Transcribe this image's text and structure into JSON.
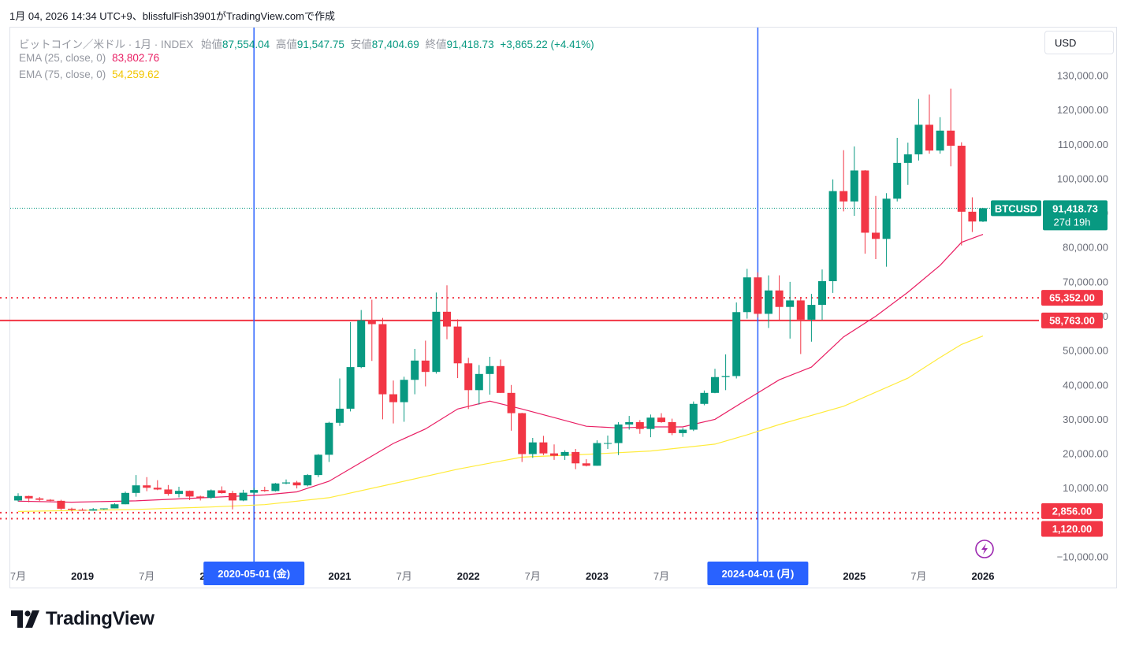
{
  "header": {
    "timestamp": "1月 04, 2026 14:34 UTC+9、blissfulFish3901がTradingView.comで作成"
  },
  "legend": {
    "symbol_line": "ビットコイン／米ドル · 1月 · INDEX",
    "open_label": "始値",
    "open": "87,554.04",
    "high_label": "高値",
    "high": "91,547.75",
    "low_label": "安値",
    "low": "87,404.69",
    "close_label": "終値",
    "close": "91,418.73",
    "change": "+3,865.22 (+4.41%)",
    "ema25_label": "EMA (25, close, 0)",
    "ema25_value": "83,802.76",
    "ema75_label": "EMA (75, close, 0)",
    "ema75_value": "54,259.62"
  },
  "currency_button": "USD",
  "price_tag": {
    "symbol": "BTCUSD",
    "price": "91,418.73",
    "countdown": "27d 19h"
  },
  "brand": "TradingView",
  "colors": {
    "up": "#089981",
    "down": "#f23645",
    "ema25": "#e91e63",
    "ema75": "#ffeb3b",
    "vline": "#2962ff",
    "hline": "#f23645"
  },
  "chart_data": {
    "type": "candlestick",
    "interval": "1M",
    "ylim": [
      -10000,
      130000
    ],
    "yticks": [
      -10000,
      10000,
      20000,
      30000,
      40000,
      50000,
      60000,
      70000,
      80000,
      90000,
      100000,
      110000,
      120000,
      130000
    ],
    "ytick_labels": [
      "−10,000.00",
      "10,000.00",
      "20,000.00",
      "30,000.00",
      "40,000.00",
      "50,000.00",
      "60,000.00",
      "70,000.00",
      "80,000.00",
      "90,000.00",
      "100,000.00",
      "110,000.00",
      "120,000.00",
      "130,000.00"
    ],
    "x_labels": [
      {
        "date": "2018-07",
        "text": "7月"
      },
      {
        "date": "2019-01",
        "text": "2019"
      },
      {
        "date": "2019-07",
        "text": "7月"
      },
      {
        "date": "2020-01",
        "text": "2020"
      },
      {
        "date": "2021-01",
        "text": "2021"
      },
      {
        "date": "2021-07",
        "text": "7月"
      },
      {
        "date": "2022-01",
        "text": "2022"
      },
      {
        "date": "2022-07",
        "text": "7月"
      },
      {
        "date": "2023-01",
        "text": "2023"
      },
      {
        "date": "2023-07",
        "text": "7月"
      },
      {
        "date": "2025-01",
        "text": "2025"
      },
      {
        "date": "2025-07",
        "text": "7月"
      },
      {
        "date": "2026-01",
        "text": "2026"
      }
    ],
    "vertical_markers": [
      {
        "date": "2020-05",
        "label": "2020-05-01 (金)"
      },
      {
        "date": "2024-04",
        "label": "2024-04-01 (月)"
      }
    ],
    "horizontal_lines": [
      {
        "value": 65352,
        "label": "65,352.00",
        "style": "dotted"
      },
      {
        "value": 58763,
        "label": "58,763.00",
        "style": "solid"
      },
      {
        "value": 2856,
        "label": "2,856.00",
        "style": "dotted"
      },
      {
        "value": 1120,
        "label": "1,120.00",
        "style": "dotted"
      }
    ],
    "last_price": 91418.73,
    "candles": [
      {
        "d": "2018-07",
        "o": 6400,
        "h": 8500,
        "l": 6100,
        "c": 7700
      },
      {
        "d": "2018-08",
        "o": 7700,
        "h": 7800,
        "l": 5900,
        "c": 7000
      },
      {
        "d": "2018-09",
        "o": 7000,
        "h": 7400,
        "l": 6200,
        "c": 6600
      },
      {
        "d": "2018-10",
        "o": 6600,
        "h": 6800,
        "l": 6200,
        "c": 6300
      },
      {
        "d": "2018-11",
        "o": 6300,
        "h": 6600,
        "l": 3600,
        "c": 4000
      },
      {
        "d": "2018-12",
        "o": 4000,
        "h": 4300,
        "l": 3200,
        "c": 3700
      },
      {
        "d": "2019-01",
        "o": 3700,
        "h": 4100,
        "l": 3400,
        "c": 3450
      },
      {
        "d": "2019-02",
        "o": 3450,
        "h": 4200,
        "l": 3400,
        "c": 3850
      },
      {
        "d": "2019-03",
        "o": 3850,
        "h": 4100,
        "l": 3700,
        "c": 4100
      },
      {
        "d": "2019-04",
        "o": 4100,
        "h": 5600,
        "l": 4100,
        "c": 5300
      },
      {
        "d": "2019-05",
        "o": 5300,
        "h": 9000,
        "l": 5300,
        "c": 8600
      },
      {
        "d": "2019-06",
        "o": 8600,
        "h": 13800,
        "l": 7500,
        "c": 10800
      },
      {
        "d": "2019-07",
        "o": 10800,
        "h": 13200,
        "l": 9100,
        "c": 10100
      },
      {
        "d": "2019-08",
        "o": 10100,
        "h": 12300,
        "l": 9400,
        "c": 9600
      },
      {
        "d": "2019-09",
        "o": 9600,
        "h": 10900,
        "l": 7800,
        "c": 8300
      },
      {
        "d": "2019-10",
        "o": 8300,
        "h": 10400,
        "l": 7300,
        "c": 9200
      },
      {
        "d": "2019-11",
        "o": 9200,
        "h": 9300,
        "l": 6500,
        "c": 7550
      },
      {
        "d": "2019-12",
        "o": 7550,
        "h": 7800,
        "l": 6400,
        "c": 7200
      },
      {
        "d": "2020-01",
        "o": 7200,
        "h": 9600,
        "l": 6900,
        "c": 9350
      },
      {
        "d": "2020-02",
        "o": 9350,
        "h": 10500,
        "l": 8400,
        "c": 8550
      },
      {
        "d": "2020-03",
        "o": 8550,
        "h": 9200,
        "l": 3800,
        "c": 6400
      },
      {
        "d": "2020-04",
        "o": 6400,
        "h": 9500,
        "l": 6200,
        "c": 8650
      },
      {
        "d": "2020-05",
        "o": 8650,
        "h": 10100,
        "l": 8100,
        "c": 9450
      },
      {
        "d": "2020-06",
        "o": 9450,
        "h": 10400,
        "l": 8900,
        "c": 9150
      },
      {
        "d": "2020-07",
        "o": 9150,
        "h": 11500,
        "l": 9000,
        "c": 11350
      },
      {
        "d": "2020-08",
        "o": 11350,
        "h": 12500,
        "l": 11100,
        "c": 11650
      },
      {
        "d": "2020-09",
        "o": 11650,
        "h": 12100,
        "l": 9900,
        "c": 10800
      },
      {
        "d": "2020-10",
        "o": 10800,
        "h": 14100,
        "l": 10500,
        "c": 13800
      },
      {
        "d": "2020-11",
        "o": 13800,
        "h": 19900,
        "l": 13200,
        "c": 19700
      },
      {
        "d": "2020-12",
        "o": 19700,
        "h": 29300,
        "l": 17600,
        "c": 29000
      },
      {
        "d": "2021-01",
        "o": 29000,
        "h": 41900,
        "l": 28100,
        "c": 33100
      },
      {
        "d": "2021-02",
        "o": 33100,
        "h": 58300,
        "l": 32300,
        "c": 45200
      },
      {
        "d": "2021-03",
        "o": 45200,
        "h": 61800,
        "l": 44900,
        "c": 58800
      },
      {
        "d": "2021-04",
        "o": 58800,
        "h": 64800,
        "l": 47000,
        "c": 57700
      },
      {
        "d": "2021-05",
        "o": 57700,
        "h": 59500,
        "l": 30000,
        "c": 37300
      },
      {
        "d": "2021-06",
        "o": 37300,
        "h": 41300,
        "l": 28800,
        "c": 35000
      },
      {
        "d": "2021-07",
        "o": 35000,
        "h": 42400,
        "l": 29300,
        "c": 41500
      },
      {
        "d": "2021-08",
        "o": 41500,
        "h": 50500,
        "l": 37300,
        "c": 47100
      },
      {
        "d": "2021-09",
        "o": 47100,
        "h": 52900,
        "l": 39600,
        "c": 43800
      },
      {
        "d": "2021-10",
        "o": 43800,
        "h": 66900,
        "l": 43300,
        "c": 61300
      },
      {
        "d": "2021-11",
        "o": 61300,
        "h": 69000,
        "l": 53300,
        "c": 57000
      },
      {
        "d": "2021-12",
        "o": 57000,
        "h": 59100,
        "l": 42000,
        "c": 46300
      },
      {
        "d": "2022-01",
        "o": 46300,
        "h": 47900,
        "l": 33000,
        "c": 38500
      },
      {
        "d": "2022-02",
        "o": 38500,
        "h": 45800,
        "l": 34300,
        "c": 43200
      },
      {
        "d": "2022-03",
        "o": 43200,
        "h": 48200,
        "l": 37200,
        "c": 45500
      },
      {
        "d": "2022-04",
        "o": 45500,
        "h": 47400,
        "l": 37700,
        "c": 37700
      },
      {
        "d": "2022-05",
        "o": 37700,
        "h": 40000,
        "l": 26700,
        "c": 31800
      },
      {
        "d": "2022-06",
        "o": 31800,
        "h": 31900,
        "l": 17600,
        "c": 19900
      },
      {
        "d": "2022-07",
        "o": 19900,
        "h": 24600,
        "l": 18800,
        "c": 23300
      },
      {
        "d": "2022-08",
        "o": 23300,
        "h": 25200,
        "l": 19600,
        "c": 20100
      },
      {
        "d": "2022-09",
        "o": 20100,
        "h": 22700,
        "l": 18200,
        "c": 19400
      },
      {
        "d": "2022-10",
        "o": 19400,
        "h": 21000,
        "l": 18200,
        "c": 20500
      },
      {
        "d": "2022-11",
        "o": 20500,
        "h": 21400,
        "l": 15500,
        "c": 17200
      },
      {
        "d": "2022-12",
        "o": 17200,
        "h": 18400,
        "l": 16300,
        "c": 16500
      },
      {
        "d": "2023-01",
        "o": 16500,
        "h": 23900,
        "l": 16500,
        "c": 23100
      },
      {
        "d": "2023-02",
        "o": 23100,
        "h": 25300,
        "l": 21400,
        "c": 23100
      },
      {
        "d": "2023-03",
        "o": 23100,
        "h": 29200,
        "l": 19600,
        "c": 28500
      },
      {
        "d": "2023-04",
        "o": 28500,
        "h": 31000,
        "l": 27000,
        "c": 29200
      },
      {
        "d": "2023-05",
        "o": 29200,
        "h": 29800,
        "l": 25800,
        "c": 27200
      },
      {
        "d": "2023-06",
        "o": 27200,
        "h": 31400,
        "l": 24800,
        "c": 30500
      },
      {
        "d": "2023-07",
        "o": 30500,
        "h": 31800,
        "l": 29000,
        "c": 29200
      },
      {
        "d": "2023-08",
        "o": 29200,
        "h": 30200,
        "l": 25400,
        "c": 26000
      },
      {
        "d": "2023-09",
        "o": 26000,
        "h": 27500,
        "l": 24900,
        "c": 27000
      },
      {
        "d": "2023-10",
        "o": 27000,
        "h": 35200,
        "l": 26600,
        "c": 34500
      },
      {
        "d": "2023-11",
        "o": 34500,
        "h": 38400,
        "l": 34100,
        "c": 37700
      },
      {
        "d": "2023-12",
        "o": 37700,
        "h": 44700,
        "l": 37600,
        "c": 42300
      },
      {
        "d": "2024-01",
        "o": 42300,
        "h": 48900,
        "l": 38500,
        "c": 42600
      },
      {
        "d": "2024-02",
        "o": 42600,
        "h": 64000,
        "l": 41900,
        "c": 61200
      },
      {
        "d": "2024-03",
        "o": 61200,
        "h": 73800,
        "l": 59300,
        "c": 71300
      },
      {
        "d": "2024-04",
        "o": 71300,
        "h": 72800,
        "l": 59600,
        "c": 60700
      },
      {
        "d": "2024-05",
        "o": 60700,
        "h": 71900,
        "l": 56600,
        "c": 67500
      },
      {
        "d": "2024-06",
        "o": 67500,
        "h": 71900,
        "l": 58600,
        "c": 62700
      },
      {
        "d": "2024-07",
        "o": 62700,
        "h": 70000,
        "l": 53500,
        "c": 64600
      },
      {
        "d": "2024-08",
        "o": 64600,
        "h": 65600,
        "l": 49000,
        "c": 59000
      },
      {
        "d": "2024-09",
        "o": 59000,
        "h": 66500,
        "l": 52600,
        "c": 63300
      },
      {
        "d": "2024-10",
        "o": 63300,
        "h": 73600,
        "l": 58900,
        "c": 70200
      },
      {
        "d": "2024-11",
        "o": 70200,
        "h": 99800,
        "l": 66800,
        "c": 96400
      },
      {
        "d": "2024-12",
        "o": 96400,
        "h": 108300,
        "l": 90500,
        "c": 93400
      },
      {
        "d": "2025-01",
        "o": 93400,
        "h": 109400,
        "l": 89200,
        "c": 102400
      },
      {
        "d": "2025-02",
        "o": 102400,
        "h": 102500,
        "l": 78200,
        "c": 84300
      },
      {
        "d": "2025-03",
        "o": 84300,
        "h": 95000,
        "l": 76600,
        "c": 82500
      },
      {
        "d": "2025-04",
        "o": 82500,
        "h": 95800,
        "l": 74400,
        "c": 94200
      },
      {
        "d": "2025-05",
        "o": 94200,
        "h": 111900,
        "l": 93400,
        "c": 104600
      },
      {
        "d": "2025-06",
        "o": 104600,
        "h": 110500,
        "l": 98200,
        "c": 107100
      },
      {
        "d": "2025-07",
        "o": 107100,
        "h": 123200,
        "l": 105300,
        "c": 115700
      },
      {
        "d": "2025-08",
        "o": 115700,
        "h": 124500,
        "l": 107300,
        "c": 108200
      },
      {
        "d": "2025-09",
        "o": 108200,
        "h": 117900,
        "l": 107300,
        "c": 114000
      },
      {
        "d": "2025-10",
        "o": 114000,
        "h": 126200,
        "l": 103600,
        "c": 109600
      },
      {
        "d": "2025-11",
        "o": 109600,
        "h": 110600,
        "l": 80600,
        "c": 90400
      },
      {
        "d": "2025-12",
        "o": 90400,
        "h": 94600,
        "l": 84500,
        "c": 87550
      },
      {
        "d": "2026-01",
        "o": 87554.04,
        "h": 91547.75,
        "l": 87404.69,
        "c": 91418.73
      }
    ],
    "ema25_points": [
      {
        "d": "2018-07",
        "v": 6200
      },
      {
        "d": "2018-12",
        "v": 5900
      },
      {
        "d": "2019-06",
        "v": 6300
      },
      {
        "d": "2020-01",
        "v": 7300
      },
      {
        "d": "2020-06",
        "v": 8000
      },
      {
        "d": "2020-09",
        "v": 8900
      },
      {
        "d": "2020-12",
        "v": 12000
      },
      {
        "d": "2021-03",
        "v": 17500
      },
      {
        "d": "2021-06",
        "v": 23000
      },
      {
        "d": "2021-09",
        "v": 27200
      },
      {
        "d": "2021-12",
        "v": 33000
      },
      {
        "d": "2022-03",
        "v": 35300
      },
      {
        "d": "2022-06",
        "v": 33000
      },
      {
        "d": "2022-09",
        "v": 30500
      },
      {
        "d": "2022-12",
        "v": 28000
      },
      {
        "d": "2023-03",
        "v": 27500
      },
      {
        "d": "2023-06",
        "v": 27800
      },
      {
        "d": "2023-09",
        "v": 27800
      },
      {
        "d": "2023-12",
        "v": 30000
      },
      {
        "d": "2024-03",
        "v": 35800
      },
      {
        "d": "2024-06",
        "v": 41500
      },
      {
        "d": "2024-09",
        "v": 45200
      },
      {
        "d": "2024-12",
        "v": 54000
      },
      {
        "d": "2025-03",
        "v": 60000
      },
      {
        "d": "2025-06",
        "v": 67000
      },
      {
        "d": "2025-09",
        "v": 74800
      },
      {
        "d": "2025-11",
        "v": 81500
      },
      {
        "d": "2026-01",
        "v": 83802.76
      }
    ],
    "ema75_points": [
      {
        "d": "2018-07",
        "v": 3200
      },
      {
        "d": "2019-06",
        "v": 3800
      },
      {
        "d": "2020-01",
        "v": 4500
      },
      {
        "d": "2020-06",
        "v": 5200
      },
      {
        "d": "2020-12",
        "v": 7200
      },
      {
        "d": "2021-06",
        "v": 11300
      },
      {
        "d": "2021-12",
        "v": 15500
      },
      {
        "d": "2022-06",
        "v": 19000
      },
      {
        "d": "2022-12",
        "v": 19800
      },
      {
        "d": "2023-06",
        "v": 20800
      },
      {
        "d": "2023-12",
        "v": 22800
      },
      {
        "d": "2024-03",
        "v": 25500
      },
      {
        "d": "2024-06",
        "v": 28500
      },
      {
        "d": "2024-12",
        "v": 33800
      },
      {
        "d": "2025-06",
        "v": 42000
      },
      {
        "d": "2025-09",
        "v": 48000
      },
      {
        "d": "2025-11",
        "v": 51800
      },
      {
        "d": "2026-01",
        "v": 54259.62
      }
    ]
  }
}
